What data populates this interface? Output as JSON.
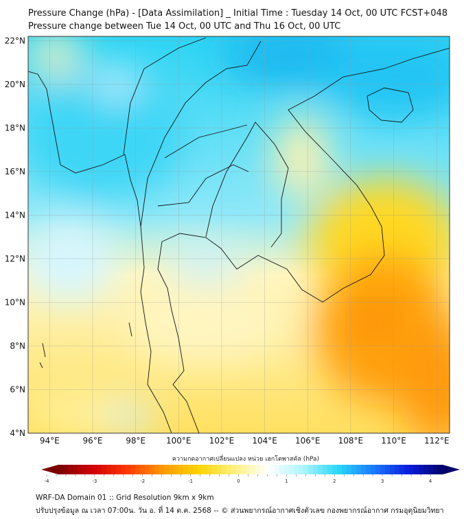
{
  "title": {
    "line1": "Pressure Change (hPa) - [Data Assimilation] _ Initial Time : Tuesday 14 Oct, 00 UTC FCST+048",
    "line2": "Pressure change between Tue 14 Oct, 00 UTC and Thu 16 Oct, 00 UTC"
  },
  "map": {
    "lat_labels": [
      "22°N",
      "20°N",
      "18°N",
      "16°N",
      "14°N",
      "12°N",
      "10°N",
      "8°N",
      "6°N",
      "4°N"
    ],
    "lon_labels": [
      "94°E",
      "96°E",
      "98°E",
      "100°E",
      "102°E",
      "104°E",
      "106°E",
      "108°E",
      "110°E",
      "112°E"
    ],
    "lat_values": [
      22,
      20,
      18,
      16,
      14,
      12,
      10,
      8,
      6,
      4
    ],
    "lon_values": [
      94,
      96,
      98,
      100,
      102,
      104,
      106,
      108,
      110,
      112
    ],
    "extent": {
      "lon_min": 93,
      "lon_max": 112.6,
      "lat_min": 4,
      "lat_max": 22.2
    }
  },
  "colorbar": {
    "title": "ความกดอากาศเปลี่ยนแปลง หน่วย เฮกโตพาสคัล (hPa)",
    "ticks": [
      "-4",
      "-3",
      "-2",
      "-1",
      "0",
      "1",
      "2",
      "3",
      "4"
    ],
    "range": [
      -4,
      4
    ],
    "colors": [
      "#7a0000",
      "#d40000",
      "#ff3a00",
      "#ff9a00",
      "#ffd400",
      "#fff07a",
      "#ffffff",
      "#aef4ff",
      "#2ad8ff",
      "#1a7cff",
      "#0a1ee0",
      "#00006a"
    ]
  },
  "footer": {
    "line1": "WRF-DA Domain 01 :: Grid Resolution 9km x 9km",
    "line2": "ปรับปรุงข้อมูล ณ เวลา 07:00น. วัน อ. ที่ 14 ต.ค. 2568 -- © ส่วนพยากรณ์อากาศเชิงตัวเลข กองพยากรณ์อากาศ กรมอุตุนิยมวิทยา"
  }
}
